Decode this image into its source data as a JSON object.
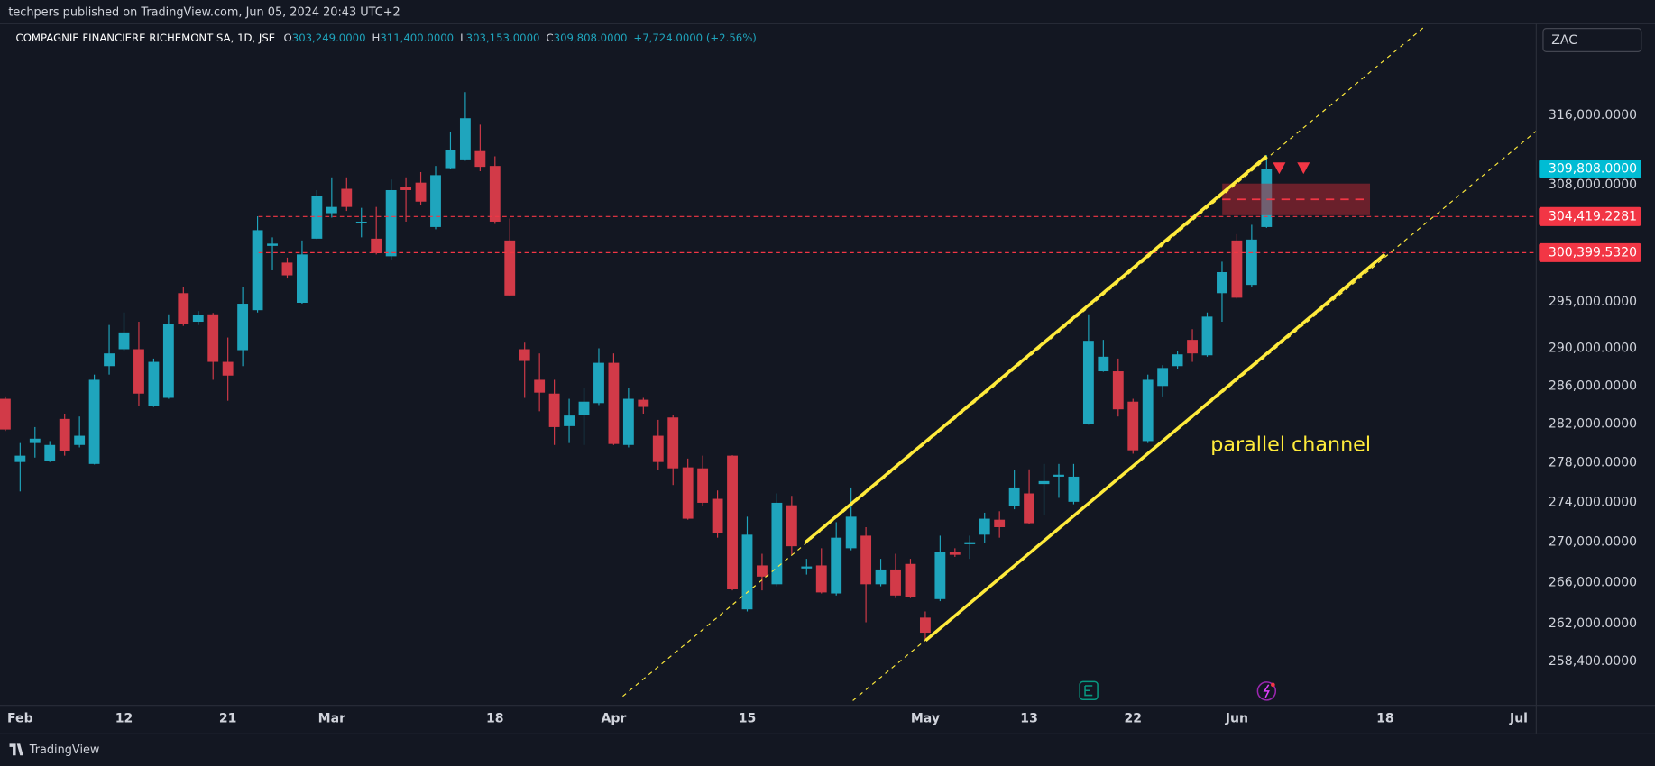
{
  "chart_data": {
    "type": "candlestick",
    "publisher": "techpers published on TradingView.com, Jun 05, 2024 20:43 UTC+2",
    "title": "COMPAGNIE FINANCIERE RICHEMONT SA, 1D, JSE",
    "ohlc": [
      {
        "key": "O",
        "value": "303,249.0000"
      },
      {
        "key": "H",
        "value": "311,400.0000"
      },
      {
        "key": "L",
        "value": "303,153.0000"
      },
      {
        "key": "C",
        "value": "309,808.0000"
      }
    ],
    "change": "+7,724.0000 (+2.56%)",
    "currency": "ZAC",
    "annotation": "parallel channel",
    "brand": "TradingView",
    "log_scale": true,
    "grid": false,
    "up_color": "#1fa5bd",
    "down_color": "#d23a48",
    "categories": [
      null,
      "Feb",
      null,
      null,
      null,
      null,
      null,
      null,
      "12",
      null,
      null,
      null,
      null,
      null,
      null,
      "21",
      null,
      null,
      null,
      null,
      null,
      null,
      "Mar",
      null,
      null,
      null,
      null,
      null,
      null,
      null,
      null,
      null,
      null,
      "18",
      null,
      null,
      null,
      null,
      null,
      null,
      null,
      "Apr",
      null,
      null,
      null,
      null,
      null,
      null,
      null,
      null,
      "15",
      null,
      null,
      null,
      null,
      null,
      null,
      null,
      null,
      null,
      null,
      null,
      "May",
      null,
      null,
      null,
      null,
      null,
      null,
      "13",
      null,
      null,
      null,
      null,
      null,
      null,
      "22",
      null,
      null,
      null,
      null,
      null,
      null,
      "Jun",
      null,
      null,
      null,
      null,
      null,
      null,
      null,
      null,
      null,
      "18",
      null,
      null,
      null,
      null,
      null,
      null,
      null,
      null,
      "Jul"
    ],
    "open": [
      284650,
      278100,
      280050,
      278200,
      282550,
      279850,
      277900,
      288100,
      289900,
      289900,
      283900,
      284750,
      295950,
      292850,
      293650,
      288550,
      289800,
      294100,
      301150,
      299300,
      294900,
      301950,
      304800,
      307550,
      303750,
      301950,
      300000,
      307750,
      308250,
      303250,
      309900,
      310900,
      311850,
      310150,
      301750,
      289900,
      286650,
      285200,
      281800,
      283000,
      284200,
      288450,
      279850,
      284550,
      280800,
      282700,
      277550,
      277450,
      274350,
      278750,
      263400,
      267700,
      265850,
      273700,
      267400,
      267700,
      264950,
      269400,
      270650,
      265850,
      267300,
      267850,
      262600,
      264400,
      269000,
      269800,
      270750,
      272250,
      273600,
      274900,
      275850,
      276600,
      274050,
      282000,
      287550,
      287550,
      284350,
      280250,
      286000,
      288100,
      290900,
      289250,
      295950,
      301750,
      296850,
      303249,
      null,
      null,
      null,
      null,
      null,
      null,
      null,
      null,
      null,
      null,
      null,
      null,
      null,
      null,
      null,
      null,
      null
    ],
    "high": [
      284900,
      280050,
      281700,
      280250,
      283100,
      282800,
      287200,
      292500,
      293850,
      292850,
      288900,
      293650,
      296600,
      294000,
      293800,
      291150,
      296600,
      304450,
      302100,
      299850,
      301750,
      307400,
      308850,
      308850,
      305400,
      305500,
      308600,
      308850,
      309450,
      310150,
      314050,
      318700,
      314900,
      311250,
      304200,
      290600,
      289450,
      286650,
      284650,
      285750,
      290000,
      289450,
      285750,
      284750,
      282450,
      283000,
      278450,
      278750,
      275200,
      278800,
      272550,
      268850,
      274900,
      274650,
      268350,
      269400,
      272000,
      275500,
      271500,
      268350,
      268850,
      268350,
      263200,
      270650,
      269400,
      270650,
      272950,
      273100,
      277250,
      277350,
      277900,
      277900,
      277900,
      293650,
      290900,
      288900,
      284650,
      287200,
      288200,
      289700,
      292050,
      293850,
      299400,
      302450,
      303500,
      311400,
      null,
      null,
      null,
      null,
      null,
      null,
      null,
      null,
      null,
      null,
      null,
      null,
      null,
      null,
      null,
      null,
      null
    ],
    "low": [
      281300,
      275100,
      278550,
      278100,
      278750,
      279600,
      277850,
      287200,
      289700,
      283900,
      283800,
      284650,
      292400,
      292500,
      286650,
      284450,
      288100,
      293850,
      298450,
      297550,
      294800,
      301900,
      304300,
      305050,
      302100,
      300200,
      299650,
      303850,
      305750,
      303000,
      309800,
      310750,
      309550,
      303600,
      295650,
      284750,
      283350,
      279850,
      280050,
      279850,
      284000,
      279850,
      279600,
      283100,
      277250,
      275750,
      272250,
      273600,
      270450,
      265250,
      263200,
      265250,
      265650,
      268750,
      266800,
      264950,
      264750,
      269200,
      262150,
      265650,
      264500,
      264500,
      260450,
      264200,
      268550,
      268350,
      269900,
      270450,
      273300,
      271800,
      272750,
      274450,
      273800,
      281950,
      287500,
      282800,
      278950,
      280050,
      284900,
      287750,
      288550,
      289100,
      292850,
      295350,
      296600,
      303153,
      null,
      null,
      null,
      null,
      null,
      null,
      null,
      null,
      null,
      null,
      null,
      null,
      null,
      null,
      null,
      null,
      null
    ],
    "close": [
      281450,
      278750,
      280500,
      279850,
      279200,
      280800,
      286650,
      289450,
      291700,
      285200,
      288550,
      292600,
      292600,
      293550,
      288550,
      287100,
      294800,
      302900,
      301400,
      297900,
      300200,
      306700,
      305500,
      305500,
      303850,
      300350,
      307400,
      307400,
      306100,
      309100,
      312000,
      315650,
      310050,
      303850,
      295700,
      288650,
      285300,
      281700,
      282900,
      284350,
      288450,
      279950,
      284650,
      283800,
      278100,
      277450,
      272350,
      273950,
      270950,
      265350,
      270750,
      266600,
      273950,
      269600,
      267600,
      265050,
      270450,
      272550,
      265850,
      267300,
      264750,
      264600,
      261150,
      269000,
      268750,
      270000,
      272350,
      271500,
      275500,
      271900,
      276150,
      276800,
      276600,
      290800,
      289100,
      283550,
      279300,
      286650,
      287900,
      289350,
      289450,
      293400,
      298250,
      295450,
      301850,
      309808,
      null,
      null,
      null,
      null,
      null,
      null,
      null,
      null,
      null,
      null,
      null,
      null,
      null,
      null,
      null,
      null,
      null
    ],
    "ylim": [
      254300,
      326900
    ],
    "yticks": [
      {
        "value": 316000,
        "label": "316,000.0000"
      },
      {
        "value": 308000,
        "label": "308,000.0000"
      },
      {
        "value": 295000,
        "label": "295,000.0000"
      },
      {
        "value": 290000,
        "label": "290,000.0000"
      },
      {
        "value": 286000,
        "label": "286,000.0000"
      },
      {
        "value": 282000,
        "label": "282,000.0000"
      },
      {
        "value": 278000,
        "label": "278,000.0000"
      },
      {
        "value": 274000,
        "label": "274,000.0000"
      },
      {
        "value": 270000,
        "label": "270,000.0000"
      },
      {
        "value": 266000,
        "label": "266,000.0000"
      },
      {
        "value": 262000,
        "label": "262,000.0000"
      },
      {
        "value": 258400,
        "label": "258,400.0000"
      }
    ],
    "price_lines": [
      {
        "value": 304419.2281,
        "label": "304,419.2281"
      },
      {
        "value": 300399.532,
        "label": "300,399.5320"
      }
    ],
    "price_line_color": "#f23645",
    "last_price": {
      "value": 309808,
      "label": "309,808.0000"
    },
    "last_price_color": "#00bcd4"
  }
}
